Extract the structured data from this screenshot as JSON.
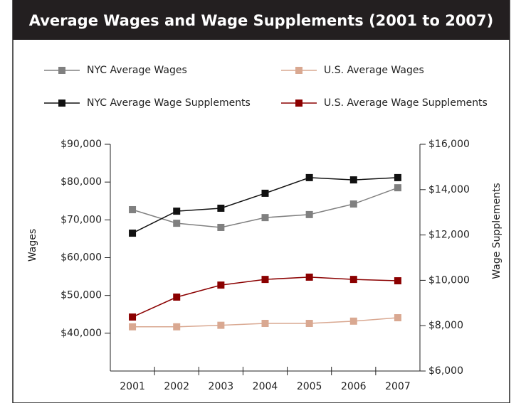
{
  "chart_data": {
    "type": "line",
    "title": "Average Wages and Wage Supplements (2001 to 2007)",
    "ylabel": "Wages",
    "y2label": "Wage Supplements",
    "categories": [
      "2001",
      "2002",
      "2003",
      "2004",
      "2005",
      "2006",
      "2007"
    ],
    "ylim": [
      30000,
      90000
    ],
    "yticks": [
      {
        "value": 40000,
        "label": "$40,000"
      },
      {
        "value": 50000,
        "label": "$50,000"
      },
      {
        "value": 60000,
        "label": "$60,000"
      },
      {
        "value": 70000,
        "label": "$70,000"
      },
      {
        "value": 80000,
        "label": "$80,000"
      },
      {
        "value": 90000,
        "label": "$90,000"
      }
    ],
    "y2lim": [
      6000,
      16000
    ],
    "y2ticks": [
      {
        "value": 6000,
        "label": "$6,000"
      },
      {
        "value": 8000,
        "label": "$8,000"
      },
      {
        "value": 10000,
        "label": "$10,000"
      },
      {
        "value": 12000,
        "label": "$12,000"
      },
      {
        "value": 14000,
        "label": "$14,000"
      },
      {
        "value": 16000,
        "label": "$16,000"
      }
    ],
    "series": [
      {
        "name": "NYC Average Wages",
        "color": "#808080",
        "values": [
          72700,
          69100,
          68000,
          70600,
          71400,
          74200,
          78500
        ]
      },
      {
        "name": "U.S. Average Wages",
        "color": "#d9a891",
        "values": [
          41700,
          41700,
          42100,
          42600,
          42600,
          43200,
          44100
        ]
      },
      {
        "name": "NYC Average Wage Supplements",
        "color": "#111111",
        "axis": "y2",
        "values": [
          12080,
          13050,
          13180,
          13840,
          14530,
          14430,
          14530
        ]
      },
      {
        "name": "U.S. Average Wage Supplements",
        "color": "#8b0000",
        "axis": "y2",
        "values": [
          8380,
          9260,
          9790,
          10040,
          10140,
          10040,
          9980
        ]
      }
    ]
  }
}
